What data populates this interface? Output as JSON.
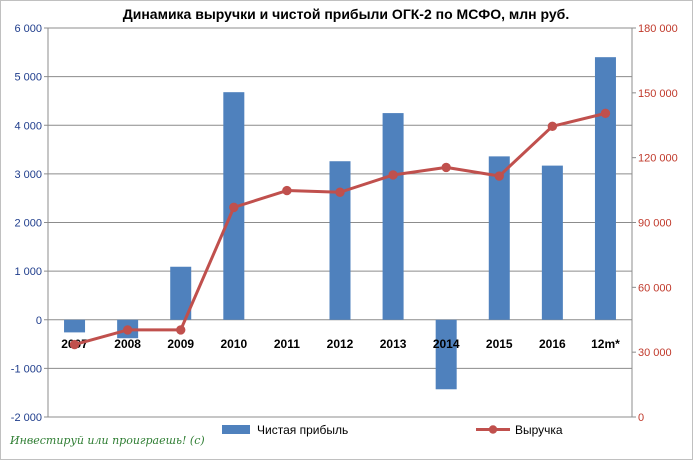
{
  "chart_data": {
    "type": "bar+line",
    "title": "Динамика выручки и чистой прибыли ОГК-2 по МСФО, млн руб.",
    "categories": [
      "2007",
      "2008",
      "2009",
      "2010",
      "2011",
      "2012",
      "2013",
      "2014",
      "2015",
      "2016",
      "12m*"
    ],
    "series": [
      {
        "name": "Чистая прибыль",
        "type": "bar",
        "axis": "left",
        "color": "#4f81bd",
        "values": [
          -260,
          -380,
          1090,
          4680,
          0,
          3260,
          4250,
          -1430,
          3360,
          3170,
          5400
        ]
      },
      {
        "name": "Выручка",
        "type": "line",
        "axis": "right",
        "color": "#c0504d",
        "values": [
          33500,
          40300,
          40300,
          97000,
          104800,
          104000,
          112000,
          115500,
          111500,
          134500,
          140500
        ]
      }
    ],
    "left_axis": {
      "min": -2000,
      "max": 6000,
      "step": 1000,
      "tick_labels": [
        "-2 000",
        "-1 000",
        "0",
        "1 000",
        "2 000",
        "3 000",
        "4 000",
        "5 000",
        "6 000"
      ]
    },
    "right_axis": {
      "min": 0,
      "max": 180000,
      "step": 30000,
      "tick_labels": [
        "0",
        "30 000",
        "60 000",
        "90 000",
        "120 000",
        "150 000",
        "180 000"
      ]
    },
    "grid": "horizontal",
    "legend": "bottom"
  },
  "watermark": "Инвестируй или проиграешь! (с)"
}
